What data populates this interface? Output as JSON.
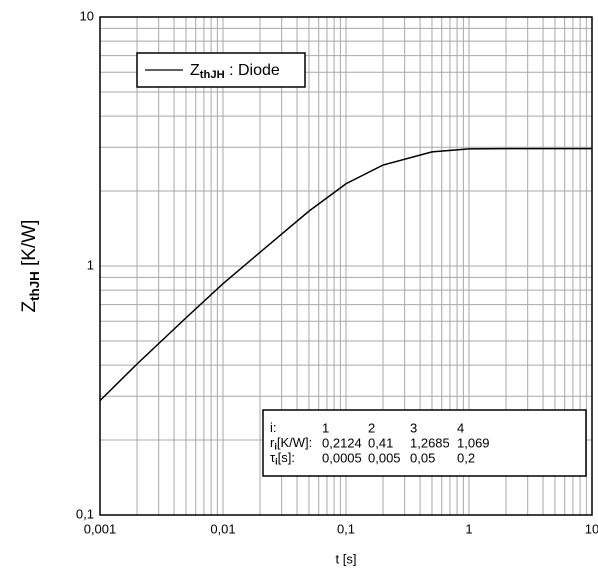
{
  "chart_data": {
    "type": "line",
    "x": [
      0.001,
      0.002,
      0.005,
      0.01,
      0.02,
      0.03,
      0.05,
      0.1,
      0.2,
      0.5,
      1,
      2,
      5,
      10
    ],
    "series": [
      {
        "name": {
          "symbol": "Z",
          "subscript": "thJH",
          "text": " : Diode"
        },
        "color": "#000000",
        "values": [
          0.288,
          0.404,
          0.619,
          0.849,
          1.135,
          1.343,
          1.661,
          2.14,
          2.543,
          2.872,
          2.953,
          2.96,
          2.96,
          2.96
        ]
      }
    ],
    "xlabel": "t [s]",
    "ylabel": {
      "symbol": "Z",
      "subscript": "thJH",
      "text": " [K/W]"
    },
    "xlim": [
      0.001,
      10
    ],
    "ylim": [
      0.1,
      10
    ],
    "xticks": [
      {
        "value": 0.001,
        "label": "0,001"
      },
      {
        "value": 0.01,
        "label": "0,01"
      },
      {
        "value": 0.1,
        "label": "0,1"
      },
      1,
      10
    ],
    "yticks": [
      {
        "value": 0.1,
        "label": "0,1"
      },
      1,
      10
    ],
    "xscale": "log",
    "yscale": "log",
    "grid": true,
    "minor_grid": true,
    "legend": "upper left"
  },
  "table": {
    "rows": [
      [
        {
          "symbol": "i",
          "subscript": "",
          "text": ":"
        },
        "1",
        "2",
        "3",
        "4"
      ],
      [
        {
          "symbol": "r",
          "subscript": "i",
          "text": "[K/W]:"
        },
        "0,2124",
        "0,41",
        "1,2685",
        "1,069"
      ],
      [
        {
          "symbol": "τ",
          "subscript": "i",
          "text": "[s]:"
        },
        "0,0005",
        "0,005",
        "0,05",
        "0,2"
      ]
    ]
  }
}
